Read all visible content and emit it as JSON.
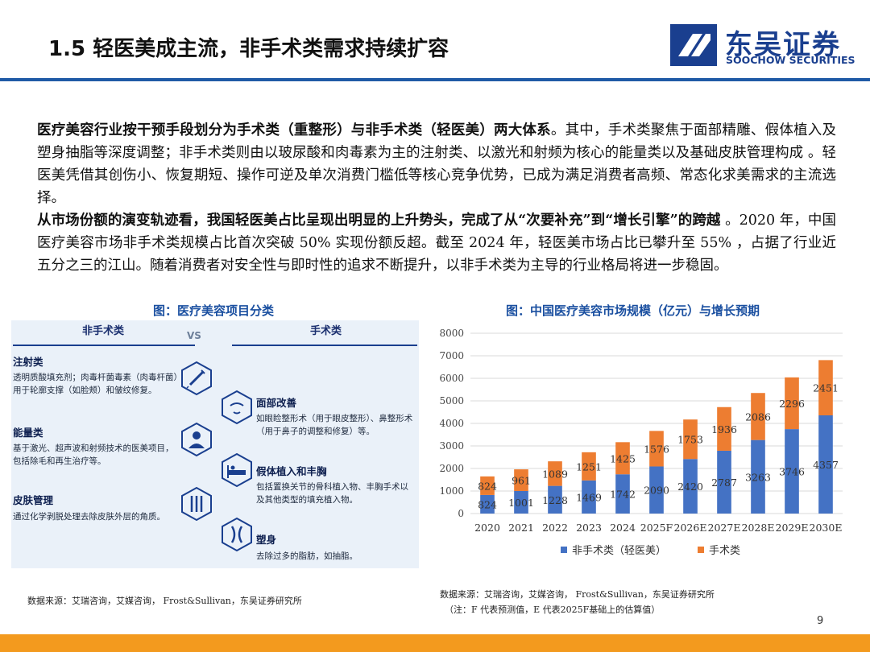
{
  "header": {
    "title": "1.5 轻医美成主流，非手术类需求持续扩容",
    "logo_cn": "东吴证券",
    "logo_en": "SOOCHOW SECURITIES",
    "brand_color": "#1a3f8f"
  },
  "body": {
    "p1_bold": "医疗美容行业按干预手段划分为手术类（重整形）与非手术类（轻医美）两大体系",
    "p1_text": "。其中，手术类聚焦于面部精雕、假体植入及塑身抽脂等深度调整；非手术类则由以玻尿酸和肉毒素为主的注射类、以激光和射频为核心的能量类以及基础皮肤管理构成 。轻医美凭借其创伤小、恢复期短、操作可逆及单次消费门槛低等核心竞争优势，已成为满足消费者高频、常态化求美需求的主流选择。",
    "p2_bold": "从市场份额的演变轨迹看，我国轻医美占比呈现出明显的上升势头，完成了从“次要补充”到“增长引擎”的跨越",
    "p2_text": " 。2020 年，中国医疗美容市场非手术类规模占比首次突破 50% 实现份额反超。截至 2024 年，轻医美市场占比已攀升至 55% ，占据了行业近五分之三的江山。随着消费者对安全性与即时性的追求不断提升，以非手术类为主导的行业格局将进一步稳固。"
  },
  "infographic": {
    "caption": "图：医疗美容项目分类",
    "left_head": "非手术类",
    "vs": "VS",
    "right_head": "手术类",
    "left_items": [
      {
        "title": "注射类",
        "desc": "透明质酸填充剂；肉毒杆菌毒素（肉毒杆菌）用于轮廓支撑（如脸颊）和皱纹修复。",
        "icon": "syringe-icon"
      },
      {
        "title": "能量类",
        "desc": "基于激光、超声波和射频技术的医美项目，包括除毛和再生治疗等。",
        "icon": "doctor-icon"
      },
      {
        "title": "皮肤管理",
        "desc": "通过化学剥脱处理去除皮肤外层的角质。",
        "icon": "skincare-tools-icon"
      }
    ],
    "right_items": [
      {
        "title": "面部改善",
        "desc": "如眼睑整形术（用于眼皮整形）、鼻整形术（用于鼻子的调整和修复）等。",
        "icon": "face-icon"
      },
      {
        "title": "假体植入和丰胸",
        "desc": "包括置换关节的骨科植入物、丰胸手术以及其他类型的填充植入物。",
        "icon": "hospital-bed-icon"
      },
      {
        "title": "塑身",
        "desc": "去除过多的脂肪，如抽脂。",
        "icon": "body-shape-icon"
      }
    ]
  },
  "chart_caption": "图：中国医疗美容市场规模（亿元）与增长预期",
  "chart_data": {
    "type": "bar",
    "stacked": true,
    "categories": [
      "2020",
      "2021",
      "2022",
      "2023",
      "2024",
      "2025F",
      "2026E",
      "2027E",
      "2028E",
      "2029E",
      "2030E"
    ],
    "series": [
      {
        "name": "非手术类（轻医美）",
        "color": "#4472c4",
        "values": [
          824,
          1001,
          1228,
          1469,
          1742,
          2090,
          2420,
          2787,
          3263,
          3746,
          4357
        ]
      },
      {
        "name": "手术类",
        "color": "#ed7d31",
        "values": [
          824,
          961,
          1089,
          1251,
          1425,
          1576,
          1753,
          1936,
          2086,
          2296,
          2451
        ]
      }
    ],
    "ylim": [
      0,
      8000
    ],
    "yticks": [
      "0",
      "1000",
      "2000",
      "3000",
      "4000",
      "5000",
      "6000",
      "7000",
      "8000"
    ],
    "grid": true,
    "legend": "bottom",
    "title": "",
    "xlabel": "",
    "ylabel": ""
  },
  "footer": {
    "source_left": "数据来源：艾瑞咨询，艾媒咨询， Frost&Sullivan，东吴证券研究所",
    "source_right": "数据来源：艾瑞咨询，艾媒咨询， Frost&Sullivan，东吴证券研究所",
    "note": "（注：F 代表预测值，E 代表2025F基础上的估算值）",
    "page": "9",
    "accent": "#f39a1e"
  }
}
